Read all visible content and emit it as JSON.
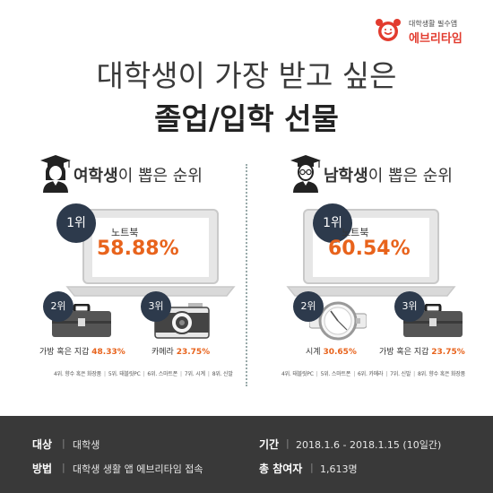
{
  "logo": {
    "tagline": "대학생활 필수앱",
    "name": "에브리타임",
    "icon": "alarm-clock-icon",
    "color": "#e23b2e"
  },
  "title": {
    "line1": "대학생이 가장 받고 싶은",
    "line2": "졸업/입학 선물"
  },
  "colors": {
    "accent": "#e8631c",
    "rank_badge": "#2d3a4c",
    "footer_bg": "#393939"
  },
  "female": {
    "icon": "female-graduate-icon",
    "title_bold": "여학생",
    "title_rest": "이 뽑은 순위",
    "rank1": {
      "rank": "1위",
      "item": "노트북",
      "percent": "58.88%",
      "icon": "laptop-icon"
    },
    "rank2": {
      "rank": "2위",
      "item": "가방 혹은 지갑",
      "percent": "48.33%",
      "icon": "briefcase-icon"
    },
    "rank3": {
      "rank": "3위",
      "item": "카메라",
      "percent": "23.75%",
      "icon": "camera-icon"
    },
    "others": [
      "4위. 향수 혹은 화장품",
      "5위. 태블릿PC",
      "6위. 스마트폰",
      "7위. 시계",
      "8위. 신발"
    ]
  },
  "male": {
    "icon": "male-graduate-icon",
    "title_bold": "남학생",
    "title_rest": "이 뽑은 순위",
    "rank1": {
      "rank": "1위",
      "item": "노트북",
      "percent": "60.54%",
      "icon": "laptop-icon"
    },
    "rank2": {
      "rank": "2위",
      "item": "시계",
      "percent": "30.65%",
      "icon": "watch-icon"
    },
    "rank3": {
      "rank": "3위",
      "item": "가방 혹은 지갑",
      "percent": "23.75%",
      "icon": "briefcase-icon"
    },
    "others": [
      "4위. 태블릿PC",
      "5위. 스마트폰",
      "6위. 카메라",
      "7위. 신발",
      "8위. 향수 혹은 화장품"
    ]
  },
  "footer": {
    "separator": "|",
    "target_label": "대상",
    "target_value": "대학생",
    "method_label": "방법",
    "method_value": "대학생 생활 앱 에브리타임 접속",
    "period_label": "기간",
    "period_value": "2018.1.6 - 2018.1.15 (10일간)",
    "participants_label": "총 참여자",
    "participants_value": "1,613명"
  }
}
